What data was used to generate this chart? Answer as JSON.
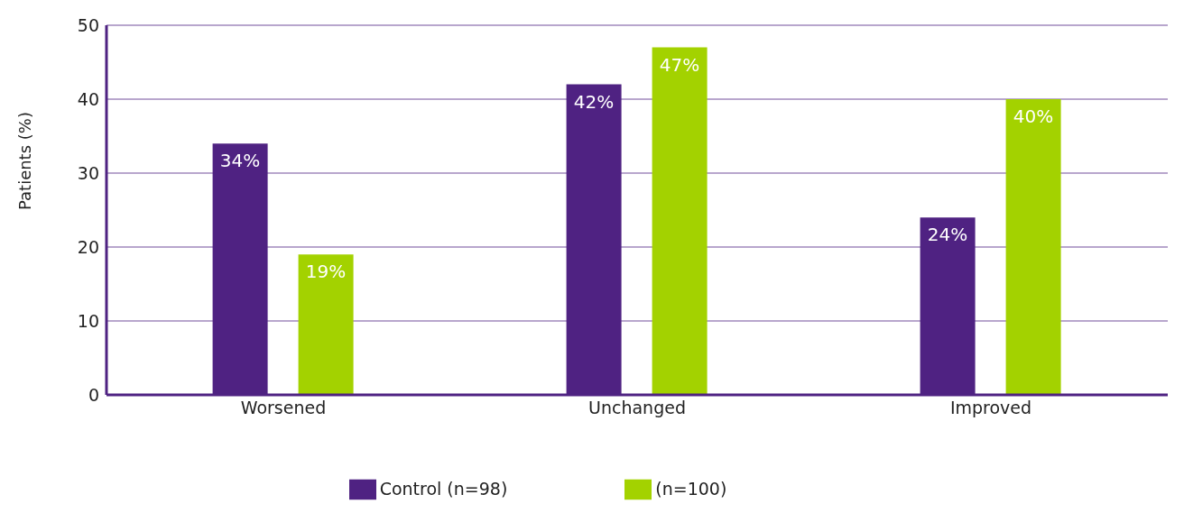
{
  "chart_data": {
    "type": "bar",
    "ylabel": "Patients (%)",
    "categories": [
      "Worsened",
      "Unchanged",
      "Improved"
    ],
    "series": [
      {
        "name": "Control (n=98)",
        "color": "#4f2282",
        "values": [
          34,
          42,
          24
        ],
        "value_labels": [
          "34%",
          "42%",
          "24%"
        ]
      },
      {
        "name": "(n=100)",
        "color": "#a3d200",
        "values": [
          19,
          47,
          40
        ],
        "value_labels": [
          "19%",
          "47%",
          "40%"
        ]
      }
    ],
    "ylim": [
      0,
      50
    ],
    "yticks": [
      0,
      10,
      20,
      30,
      40,
      50
    ],
    "grid": "y",
    "legend": "bottom"
  }
}
